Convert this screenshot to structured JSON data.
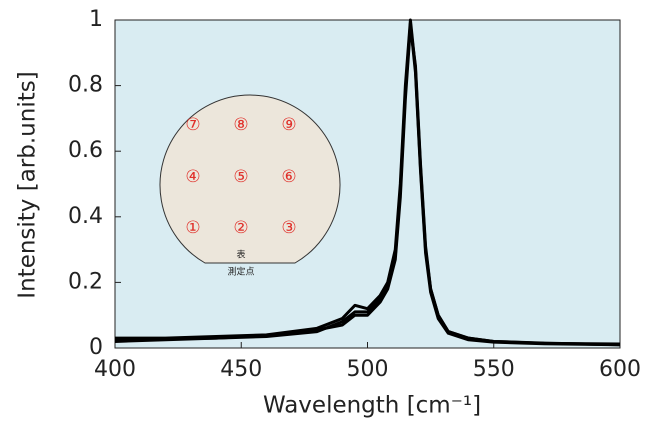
{
  "chart_data": {
    "type": "line",
    "xlabel": "Wavelength [cm⁻¹]",
    "ylabel": "Intensity [arb.units]",
    "x": [
      400,
      420,
      440,
      460,
      480,
      490,
      495,
      500,
      505,
      508,
      511,
      513,
      515,
      517,
      519,
      521,
      523,
      525,
      528,
      532,
      540,
      550,
      570,
      600
    ],
    "series": [
      {
        "color": "#000000",
        "values": [
          0.03,
          0.03,
          0.035,
          0.04,
          0.06,
          0.09,
          0.13,
          0.12,
          0.16,
          0.2,
          0.3,
          0.5,
          0.8,
          1,
          0.85,
          0.55,
          0.3,
          0.18,
          0.1,
          0.05,
          0.03,
          0.02,
          0.015,
          0.01
        ]
      },
      {
        "color": "#000000",
        "values": [
          0.02,
          0.025,
          0.03,
          0.035,
          0.05,
          0.08,
          0.11,
          0.11,
          0.15,
          0.19,
          0.28,
          0.48,
          0.78,
          0.99,
          0.84,
          0.54,
          0.29,
          0.17,
          0.09,
          0.045,
          0.025,
          0.018,
          0.013,
          0.01
        ]
      },
      {
        "color": "#000000",
        "values": [
          0.025,
          0.028,
          0.03,
          0.038,
          0.055,
          0.07,
          0.1,
          0.1,
          0.14,
          0.18,
          0.27,
          0.46,
          0.76,
          0.98,
          0.86,
          0.56,
          0.31,
          0.18,
          0.1,
          0.05,
          0.03,
          0.02,
          0.014,
          0.012
        ]
      }
    ],
    "xlim": [
      400,
      600
    ],
    "xticks": [
      400,
      450,
      500,
      550,
      600
    ],
    "ylim": [
      0,
      1
    ],
    "yticks": [
      0,
      0.2,
      0.4,
      0.6,
      0.8,
      1
    ],
    "background": "#d9ecf2",
    "inset": {
      "points": [
        "⑦",
        "⑧",
        "⑨",
        "④",
        "⑤",
        "⑥",
        "①",
        "②",
        "③"
      ],
      "side": "表",
      "caption": "測定点"
    }
  }
}
